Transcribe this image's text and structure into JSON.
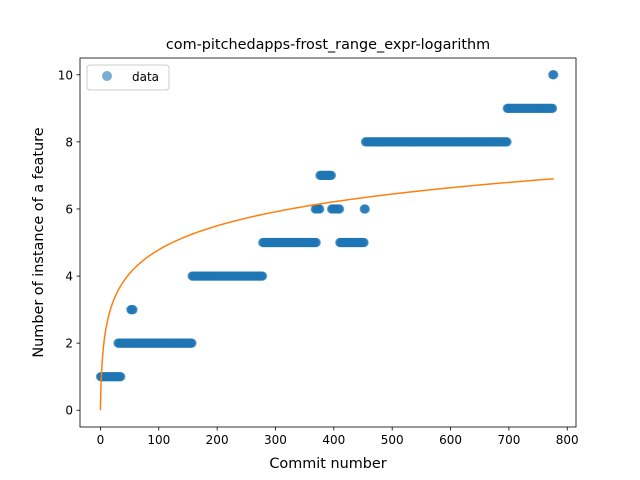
{
  "chart_data": {
    "type": "scatter",
    "title": "com-pitchedapps-frost_range_expr-logarithm",
    "xlabel": "Commit number",
    "ylabel": "Number of instance of a feature",
    "xlim": [
      -35,
      815
    ],
    "ylim": [
      -0.5,
      10.5
    ],
    "xticks": [
      0,
      100,
      200,
      300,
      400,
      500,
      600,
      700,
      800
    ],
    "yticks": [
      0,
      2,
      4,
      6,
      8,
      10
    ],
    "legend": {
      "placement": "top-left",
      "entries": [
        "data"
      ]
    },
    "colors": {
      "data": "#1f77b4",
      "fit": "#ff7f0e"
    },
    "series": [
      {
        "name": "data",
        "kind": "scatter",
        "segments": [
          {
            "x_start": 0,
            "x_end": 35,
            "y": 1
          },
          {
            "x_start": 30,
            "x_end": 55,
            "y": 2
          },
          {
            "x_start": 52,
            "x_end": 56,
            "y": 3
          },
          {
            "x_start": 55,
            "x_end": 157,
            "y": 2
          },
          {
            "x_start": 157,
            "x_end": 278,
            "y": 4
          },
          {
            "x_start": 278,
            "x_end": 370,
            "y": 5
          },
          {
            "x_start": 368,
            "x_end": 376,
            "y": 6
          },
          {
            "x_start": 376,
            "x_end": 396,
            "y": 7
          },
          {
            "x_start": 396,
            "x_end": 410,
            "y": 6
          },
          {
            "x_start": 410,
            "x_end": 452,
            "y": 5
          },
          {
            "x_start": 452,
            "x_end": 454,
            "y": 6
          },
          {
            "x_start": 454,
            "x_end": 697,
            "y": 8
          },
          {
            "x_start": 697,
            "x_end": 775,
            "y": 9
          },
          {
            "x_start": 775,
            "x_end": 777,
            "y": 10
          }
        ]
      },
      {
        "kind": "line",
        "model": "logarithm",
        "x_range": [
          0,
          777
        ],
        "y_end": 6.9
      }
    ]
  }
}
